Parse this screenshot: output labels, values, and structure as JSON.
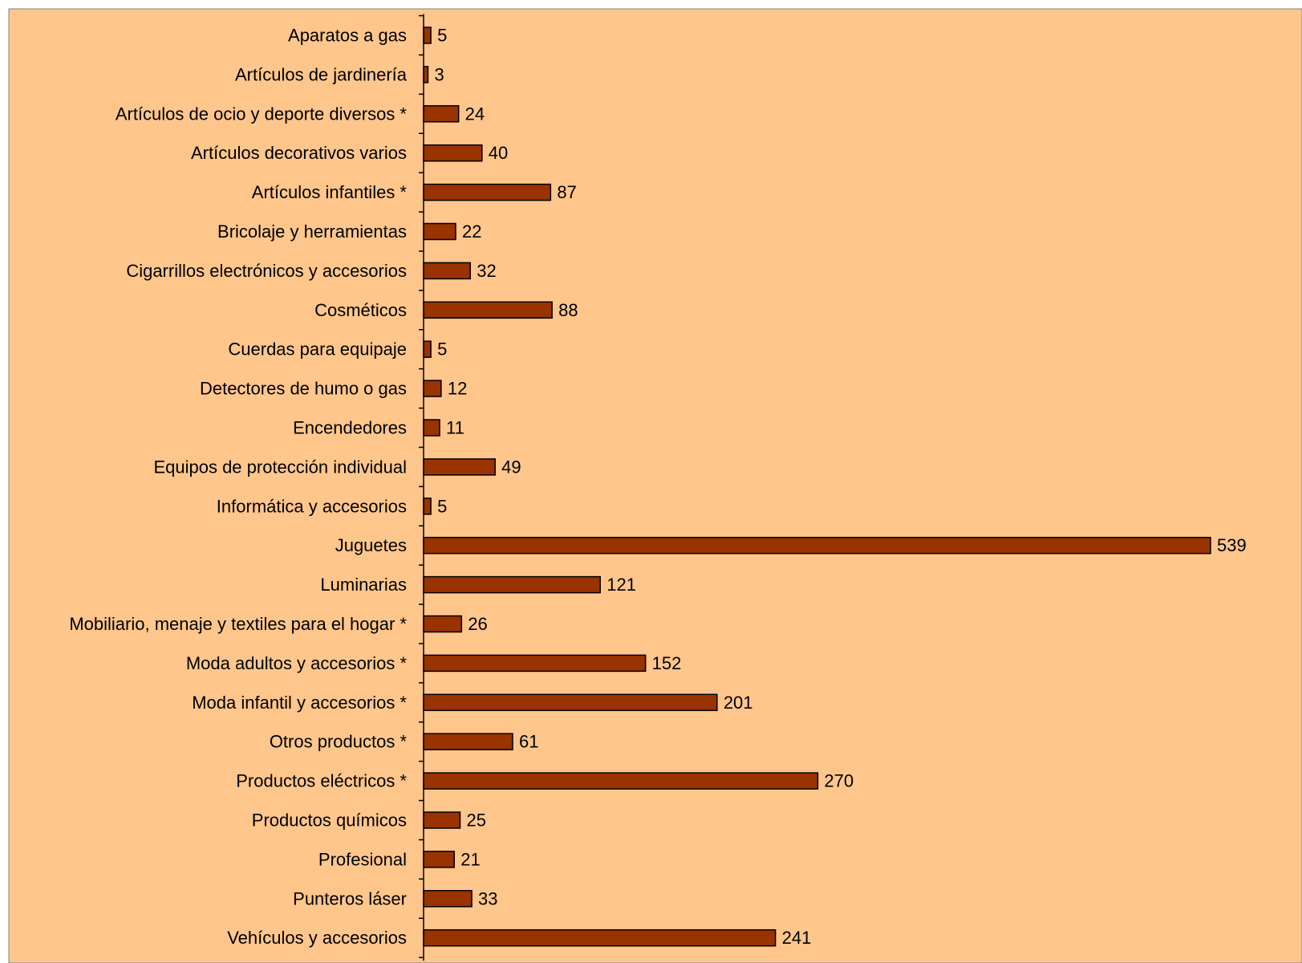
{
  "chart_data": {
    "type": "bar",
    "orientation": "horizontal",
    "title": "",
    "xlabel": "",
    "ylabel": "",
    "xlim": [
      0,
      600
    ],
    "grid": false,
    "legend": "none",
    "categories": [
      "Aparatos a gas",
      "Artículos de jardinería",
      "Artículos de ocio y deporte diversos *",
      "Artículos decorativos varios",
      "Artículos infantiles *",
      "Bricolaje y herramientas",
      "Cigarrillos electrónicos y accesorios",
      "Cosméticos",
      "Cuerdas para equipaje",
      "Detectores de humo o gas",
      "Encendedores",
      "Equipos de protección individual",
      "Informática y accesorios",
      "Juguetes",
      "Luminarias",
      "Mobiliario, menaje y textiles para el hogar *",
      "Moda adultos y accesorios *",
      "Moda infantil y accesorios *",
      "Otros productos *",
      "Productos eléctricos *",
      "Productos químicos",
      "Profesional",
      "Punteros láser",
      "Vehículos y accesorios"
    ],
    "values": [
      5,
      3,
      24,
      40,
      87,
      22,
      32,
      88,
      5,
      12,
      11,
      49,
      5,
      539,
      121,
      26,
      152,
      201,
      61,
      270,
      25,
      21,
      33,
      241
    ],
    "data_labels": [
      "5",
      "3",
      "24",
      "40",
      "87",
      "22",
      "32",
      "88",
      "5",
      "12",
      "11",
      "49",
      "5",
      "539",
      "121",
      "26",
      "152",
      "201",
      "61",
      "270",
      "25",
      "21",
      "33",
      "241"
    ]
  },
  "colors": {
    "page_background": "#ffffff",
    "plot_background": "#ffc68c",
    "bar_fill": "#993300",
    "bar_stroke": "#000000",
    "axis": "#000000",
    "border": "#808080"
  }
}
